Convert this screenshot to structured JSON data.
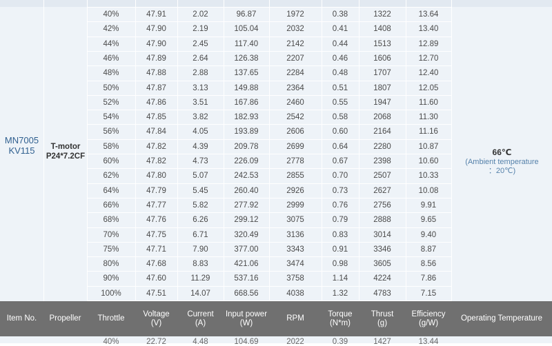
{
  "motor": {
    "line1": "MN7005",
    "line2": "KV115"
  },
  "propeller": {
    "line1": "T-motor",
    "line2": "P24*7.2CF"
  },
  "temperature": {
    "value": "66℃",
    "note_line1": "(Ambient temperature",
    "note_line2": "：20℃)"
  },
  "rows": [
    [
      "40%",
      "47.91",
      "2.02",
      "96.87",
      "1972",
      "0.38",
      "1322",
      "13.64"
    ],
    [
      "42%",
      "47.90",
      "2.19",
      "105.04",
      "2032",
      "0.41",
      "1408",
      "13.40"
    ],
    [
      "44%",
      "47.90",
      "2.45",
      "117.40",
      "2142",
      "0.44",
      "1513",
      "12.89"
    ],
    [
      "46%",
      "47.89",
      "2.64",
      "126.38",
      "2207",
      "0.46",
      "1606",
      "12.70"
    ],
    [
      "48%",
      "47.88",
      "2.88",
      "137.65",
      "2284",
      "0.48",
      "1707",
      "12.40"
    ],
    [
      "50%",
      "47.87",
      "3.13",
      "149.88",
      "2364",
      "0.51",
      "1807",
      "12.05"
    ],
    [
      "52%",
      "47.86",
      "3.51",
      "167.86",
      "2460",
      "0.55",
      "1947",
      "11.60"
    ],
    [
      "54%",
      "47.85",
      "3.82",
      "182.93",
      "2542",
      "0.58",
      "2068",
      "11.30"
    ],
    [
      "56%",
      "47.84",
      "4.05",
      "193.89",
      "2606",
      "0.60",
      "2164",
      "11.16"
    ],
    [
      "58%",
      "47.82",
      "4.39",
      "209.78",
      "2699",
      "0.64",
      "2280",
      "10.87"
    ],
    [
      "60%",
      "47.82",
      "4.73",
      "226.09",
      "2778",
      "0.67",
      "2398",
      "10.60"
    ],
    [
      "62%",
      "47.80",
      "5.07",
      "242.53",
      "2855",
      "0.70",
      "2507",
      "10.33"
    ],
    [
      "64%",
      "47.79",
      "5.45",
      "260.40",
      "2926",
      "0.73",
      "2627",
      "10.08"
    ],
    [
      "66%",
      "47.77",
      "5.82",
      "277.92",
      "2999",
      "0.76",
      "2756",
      "9.91"
    ],
    [
      "68%",
      "47.76",
      "6.26",
      "299.12",
      "3075",
      "0.79",
      "2888",
      "9.65"
    ],
    [
      "70%",
      "47.75",
      "6.71",
      "320.49",
      "3136",
      "0.83",
      "3014",
      "9.40"
    ],
    [
      "75%",
      "47.71",
      "7.90",
      "377.00",
      "3343",
      "0.91",
      "3346",
      "8.87"
    ],
    [
      "80%",
      "47.68",
      "8.83",
      "421.06",
      "3474",
      "0.98",
      "3605",
      "8.56"
    ],
    [
      "90%",
      "47.60",
      "11.29",
      "537.16",
      "3758",
      "1.14",
      "4224",
      "7.86"
    ],
    [
      "100%",
      "47.51",
      "14.07",
      "668.56",
      "4038",
      "1.32",
      "4783",
      "7.15"
    ]
  ],
  "headers": [
    {
      "line1": "Item No.",
      "line2": ""
    },
    {
      "line1": "Propeller",
      "line2": ""
    },
    {
      "line1": "Throttle",
      "line2": ""
    },
    {
      "line1": "Voltage",
      "line2": "(V)"
    },
    {
      "line1": "Current",
      "line2": "(A)"
    },
    {
      "line1": "Input power",
      "line2": "(W)"
    },
    {
      "line1": "RPM",
      "line2": ""
    },
    {
      "line1": "Torque",
      "line2": "(N*m)"
    },
    {
      "line1": "Thrust",
      "line2": "(g)"
    },
    {
      "line1": "Efficiency",
      "line2": "(g/W)"
    },
    {
      "line1": "Operating Temperature",
      "line2": ""
    }
  ],
  "next_row_partial": [
    "40%",
    "22.72",
    "4.48",
    "104.69",
    "2022",
    "0.39",
    "1427",
    "13.44"
  ],
  "colors": {
    "table_bg": "#eef3f8",
    "header_bg": "#707070",
    "motor_text": "#2f5f8f",
    "temp_note": "#5581aa"
  }
}
